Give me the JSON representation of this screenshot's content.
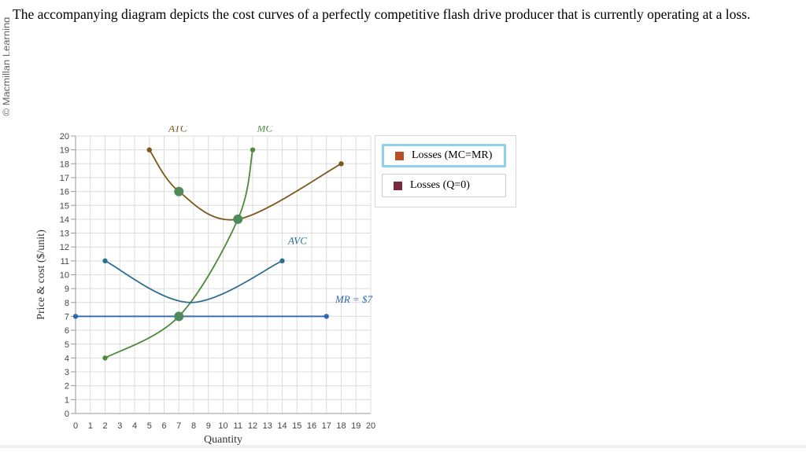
{
  "watermark": "© Macmillan Learning",
  "question": "The accompanying diagram depicts the cost curves of a perfectly competitive flash drive producer that is currently operating at a loss.",
  "legend": [
    {
      "label": "Losses (MC=MR)",
      "color": "#b5502a",
      "selected": true
    },
    {
      "label": "Losses (Q=0)",
      "color": "#7a2740",
      "selected": false
    }
  ],
  "chart_data": {
    "type": "line",
    "xlabel": "Quantity",
    "ylabel": "Price & cost ($/unit)",
    "xlim": [
      0,
      20
    ],
    "ylim": [
      0,
      20
    ],
    "xticks": [
      0,
      1,
      2,
      3,
      4,
      5,
      6,
      7,
      8,
      9,
      10,
      11,
      12,
      13,
      14,
      15,
      16,
      17,
      18,
      19,
      20
    ],
    "yticks": [
      0,
      1,
      2,
      3,
      4,
      5,
      6,
      7,
      8,
      9,
      10,
      11,
      12,
      13,
      14,
      15,
      16,
      17,
      18,
      19,
      20
    ],
    "grid": true,
    "series": [
      {
        "name": "ATC",
        "color": "#7a5a1c",
        "label_at": [
          6.3,
          20.3
        ],
        "points": [
          [
            5,
            19
          ],
          [
            7,
            16
          ],
          [
            11,
            14
          ],
          [
            18,
            18
          ]
        ],
        "knots": [
          [
            7,
            16
          ],
          [
            11,
            14
          ]
        ],
        "endpoints": [
          [
            5,
            19
          ],
          [
            18,
            18
          ]
        ]
      },
      {
        "name": "MC",
        "color": "#4d8a3a",
        "label_at": [
          12.3,
          20.3
        ],
        "points": [
          [
            2,
            4
          ],
          [
            7,
            7
          ],
          [
            11,
            14
          ],
          [
            12,
            19
          ]
        ],
        "knots": [
          [
            7,
            7
          ],
          [
            11,
            14
          ]
        ],
        "endpoints": [
          [
            2,
            4
          ],
          [
            12,
            19
          ]
        ]
      },
      {
        "name": "AVC",
        "color": "#2d6f8e",
        "label_at": [
          14.4,
          12.2
        ],
        "points": [
          [
            2,
            11
          ],
          [
            7.8,
            8
          ],
          [
            14,
            11
          ]
        ],
        "knots": [],
        "endpoints": [
          [
            2,
            11
          ],
          [
            14,
            11
          ]
        ]
      },
      {
        "name": "MR = $7",
        "color": "#2f67b0",
        "label_at": [
          17.6,
          8.0
        ],
        "points": [
          [
            0,
            7
          ],
          [
            17,
            7
          ]
        ],
        "knots": [],
        "endpoints": [
          [
            0,
            7
          ],
          [
            17,
            7
          ]
        ]
      }
    ],
    "key_points": [
      [
        7,
        16
      ],
      [
        11,
        14
      ],
      [
        7,
        7
      ]
    ]
  }
}
